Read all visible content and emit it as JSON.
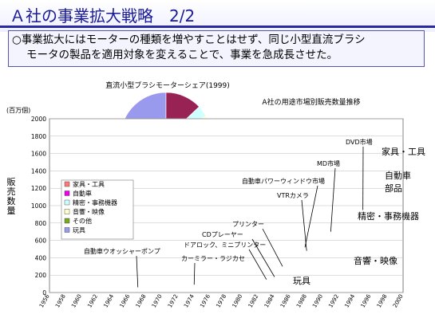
{
  "title": "Ａ社の事業拡大戦略　2/2",
  "message": {
    "line1": "○事業拡大にはモーターの種類を増やすことはせず、同じ小型直流ブラシ",
    "line2": "モータの製品を適用対象を変えることで、事業を急成長させた。"
  },
  "colors": {
    "toys": "#9999ee",
    "other": "#77aa22",
    "audio_video": "#ffffcc",
    "precision": "#ccffff",
    "automotive": "#ee00ee",
    "home_tools": "#ff7777",
    "pie_other": "#992255"
  },
  "chart_data": [
    {
      "type": "pie",
      "title": "直流小型ブラシモーターシェア(1999)",
      "slices": [
        {
          "label": "A社",
          "value": 55,
          "color": "#9999ee"
        },
        {
          "label": "",
          "value": 13,
          "color": "#992255"
        },
        {
          "label": "",
          "value": 4,
          "color": "#cfffff"
        },
        {
          "label": "",
          "value": 4,
          "color": "#ffffcc"
        },
        {
          "label": "",
          "value": 3,
          "color": "#99ccff"
        },
        {
          "label": "",
          "value": 3,
          "color": "#ff7777"
        },
        {
          "label": "",
          "value": 3,
          "color": "#bb66cc"
        },
        {
          "label": "",
          "value": 3,
          "color": "#ddddff"
        },
        {
          "label": "",
          "value": 3,
          "color": "#6699cc"
        },
        {
          "label": "",
          "value": 3,
          "color": "#ffccff"
        },
        {
          "label": "",
          "value": 3,
          "color": "#4466aa"
        },
        {
          "label": "",
          "value": 3,
          "color": "#ee88cc"
        }
      ]
    },
    {
      "type": "area",
      "title": "A社の用途市場別販売数量推移",
      "ylabel": "販売数量",
      "yunit": "(百万個)",
      "ylim": [
        0,
        2000
      ],
      "yticks": [
        0,
        200,
        400,
        600,
        800,
        1000,
        1200,
        1400,
        1600,
        1800,
        2000
      ],
      "xlim": [
        1956,
        2000
      ],
      "xticks": [
        1956,
        1958,
        1960,
        1962,
        1964,
        1966,
        1968,
        1970,
        1972,
        1974,
        1976,
        1978,
        1980,
        1982,
        1984,
        1986,
        1988,
        1990,
        1992,
        1994,
        1996,
        1998,
        2000
      ],
      "x": [
        1956,
        1960,
        1962,
        1964,
        1966,
        1967,
        1968,
        1970,
        1972,
        1974,
        1976,
        1977,
        1978,
        1979,
        1980,
        1981,
        1982,
        1983,
        1984,
        1985,
        1986,
        1987,
        1988,
        1989,
        1990,
        1991,
        1992,
        1993,
        1994,
        1995,
        1996,
        1997,
        1998,
        1999,
        2000
      ],
      "series": [
        {
          "name": "玩具",
          "key": "toys",
          "values": [
            0,
            5,
            15,
            30,
            50,
            90,
            100,
            95,
            92,
            105,
            110,
            105,
            100,
            105,
            110,
            100,
            100,
            100,
            110,
            120,
            130,
            130,
            140,
            145,
            150,
            150,
            150,
            160,
            180,
            170,
            160,
            160,
            170,
            160,
            170
          ]
        },
        {
          "name": "その他",
          "key": "other",
          "values": [
            0,
            0,
            0,
            0,
            5,
            15,
            30,
            20,
            35,
            30,
            50,
            100,
            120,
            130,
            110,
            30,
            15,
            10,
            10,
            10,
            10,
            10,
            10,
            10,
            10,
            10,
            10,
            10,
            10,
            10,
            10,
            10,
            10,
            10,
            10
          ]
        },
        {
          "name": "音響・映像",
          "key": "audio_video",
          "values": [
            0,
            0,
            0,
            0,
            0,
            0,
            0,
            0,
            0,
            0,
            0,
            0,
            0,
            0,
            0,
            50,
            100,
            140,
            150,
            200,
            250,
            300,
            380,
            420,
            450,
            420,
            460,
            400,
            420,
            470,
            520,
            620,
            750,
            880,
            920
          ]
        },
        {
          "name": "精密・事務機器",
          "key": "precision",
          "values": [
            0,
            0,
            0,
            0,
            0,
            0,
            0,
            0,
            0,
            0,
            0,
            0,
            0,
            0,
            0,
            10,
            20,
            30,
            30,
            40,
            50,
            60,
            80,
            100,
            110,
            110,
            120,
            130,
            140,
            160,
            180,
            200,
            200,
            220,
            230
          ]
        },
        {
          "name": "自動車",
          "key": "automotive",
          "values": [
            0,
            0,
            0,
            0,
            0,
            0,
            0,
            0,
            0,
            0,
            0,
            0,
            0,
            0,
            0,
            5,
            10,
            20,
            30,
            40,
            50,
            60,
            80,
            90,
            110,
            110,
            120,
            120,
            130,
            150,
            160,
            170,
            200,
            180,
            200
          ]
        },
        {
          "name": "家具・工具",
          "key": "home_tools",
          "values": [
            0,
            0,
            0,
            0,
            0,
            0,
            0,
            0,
            0,
            0,
            0,
            0,
            0,
            0,
            0,
            5,
            5,
            10,
            10,
            15,
            20,
            30,
            40,
            50,
            60,
            70,
            80,
            90,
            100,
            110,
            140,
            150,
            160,
            170,
            200
          ]
        }
      ],
      "legend": [
        "家具・工具",
        "自動車",
        "精密・事務機器",
        "音響・映像",
        "その他",
        "玩具"
      ],
      "annotations": [
        {
          "text": "自動車ウオッシャーポンプ",
          "x": 1967
        },
        {
          "text": "カーミラー・ラジカセ",
          "x": 1974
        },
        {
          "text": "ドアロック、ミニプリンター",
          "x": 1983
        },
        {
          "text": "CDプレーヤー",
          "x": 1984
        },
        {
          "text": "プリンター",
          "x": 1985
        },
        {
          "text": "VTRカメラ",
          "x": 1988
        },
        {
          "text": "自動車パワーウィンドウ市場",
          "x": 1986
        },
        {
          "text": "MD市場",
          "x": 1991
        },
        {
          "text": "DVD市場",
          "x": 1995
        }
      ],
      "area_labels": [
        "家具・工具",
        "自動車",
        "部品",
        "精密・事務機器",
        "音響・映像",
        "玩具"
      ]
    }
  ]
}
